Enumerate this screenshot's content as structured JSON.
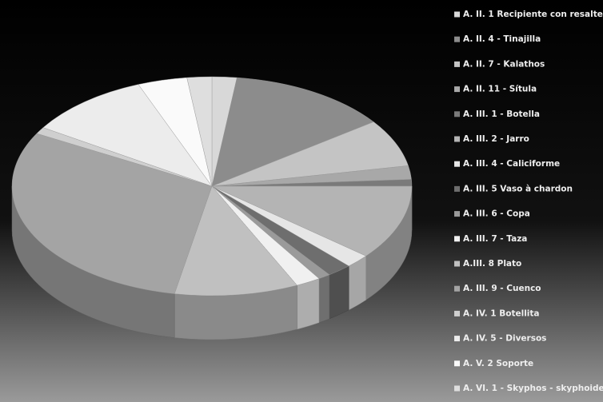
{
  "chart_data": {
    "type": "pie",
    "categories": [
      "A. II. 1 Recipiente con resalte",
      "A. II. 4 - Tinajilla",
      "A. II. 7 - Kalathos",
      "A. II. 11 - Sítula",
      "A. III. 1 - Botella",
      "A. III. 2 - Jarro",
      "A. III. 4 - Caliciforme",
      "A. III. 5 Vaso à chardon",
      "A. III. 6 - Copa",
      "A. III. 7 - Taza",
      "A.III. 8 Plato",
      "A. III. 9 - Cuenco",
      "A. IV. 1 Botellita",
      "A. IV. 5 - Diversos",
      "A. V. 2 Soporte",
      "A. VI. 1 - Skyphos - skyphoide"
    ],
    "values": [
      2,
      13,
      7,
      2,
      1,
      11,
      2,
      2,
      1,
      2,
      10,
      30,
      1,
      10,
      4,
      2
    ],
    "colors": [
      "#d8d8d8",
      "#8c8c8c",
      "#c4c4c4",
      "#a8a8a8",
      "#7a7a7a",
      "#b4b4b4",
      "#e6e6e6",
      "#6e6e6e",
      "#9a9a9a",
      "#f0f0f0",
      "#c0c0c0",
      "#a4a4a4",
      "#cfcfcf",
      "#ececec",
      "#fafafa",
      "#dedede"
    ]
  }
}
